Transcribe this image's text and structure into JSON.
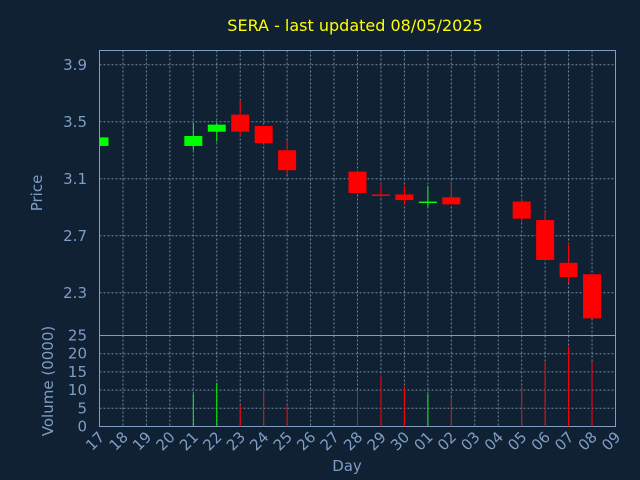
{
  "chart_data": {
    "type": "candlestick",
    "title": "SERA - last updated 08/05/2025",
    "xlabel": "Day",
    "ylabel": "Price",
    "volume_label": "Volume (0000)",
    "categories": [
      "17",
      "18",
      "19",
      "20",
      "21",
      "22",
      "23",
      "24",
      "25",
      "26",
      "27",
      "28",
      "29",
      "30",
      "01",
      "02",
      "03",
      "04",
      "05",
      "06",
      "07",
      "08",
      "09"
    ],
    "ylim": [
      2.0,
      4.0
    ],
    "yticks": [
      2.3,
      2.7,
      3.1,
      3.5,
      3.9
    ],
    "volume_ylim": [
      0,
      25
    ],
    "volume_yticks": [
      0,
      5,
      10,
      15,
      20,
      25
    ],
    "grid": true,
    "up_color": "#00ff00",
    "down_color": "#ff0000",
    "candles": [
      {
        "day": "17",
        "open": 3.33,
        "high": 3.39,
        "low": 3.33,
        "close": 3.39
      },
      {
        "day": "21",
        "open": 3.33,
        "high": 3.49,
        "low": 3.3,
        "close": 3.4
      },
      {
        "day": "22",
        "open": 3.43,
        "high": 3.49,
        "low": 3.36,
        "close": 3.48
      },
      {
        "day": "23",
        "open": 3.55,
        "high": 3.65,
        "low": 3.4,
        "close": 3.43
      },
      {
        "day": "24",
        "open": 3.47,
        "high": 3.47,
        "low": 3.35,
        "close": 3.35
      },
      {
        "day": "25",
        "open": 3.3,
        "high": 3.37,
        "low": 3.13,
        "close": 3.16
      },
      {
        "day": "28",
        "open": 3.15,
        "high": 3.16,
        "low": 3.0,
        "close": 3.0
      },
      {
        "day": "29",
        "open": 2.99,
        "high": 3.07,
        "low": 2.97,
        "close": 2.98
      },
      {
        "day": "30",
        "open": 2.99,
        "high": 3.05,
        "low": 2.92,
        "close": 2.95
      },
      {
        "day": "01",
        "open": 2.93,
        "high": 3.05,
        "low": 2.9,
        "close": 2.94
      },
      {
        "day": "02",
        "open": 2.97,
        "high": 3.08,
        "low": 2.92,
        "close": 2.92
      },
      {
        "day": "05",
        "open": 2.94,
        "high": 2.96,
        "low": 2.8,
        "close": 2.82
      },
      {
        "day": "06",
        "open": 2.81,
        "high": 2.87,
        "low": 2.53,
        "close": 2.53
      },
      {
        "day": "07",
        "open": 2.51,
        "high": 2.65,
        "low": 2.37,
        "close": 2.41
      },
      {
        "day": "08",
        "open": 2.43,
        "high": 2.43,
        "low": 2.12,
        "close": 2.12
      }
    ],
    "volume": [
      {
        "day": "21",
        "value": 9,
        "dir": "up"
      },
      {
        "day": "22",
        "value": 12,
        "dir": "up"
      },
      {
        "day": "23",
        "value": 6,
        "dir": "down"
      },
      {
        "day": "24",
        "value": 10,
        "dir": "down"
      },
      {
        "day": "25",
        "value": 6,
        "dir": "down"
      },
      {
        "day": "28",
        "value": 10,
        "dir": "down"
      },
      {
        "day": "29",
        "value": 14,
        "dir": "down"
      },
      {
        "day": "30",
        "value": 11,
        "dir": "down"
      },
      {
        "day": "01",
        "value": 9,
        "dir": "up"
      },
      {
        "day": "02",
        "value": 8,
        "dir": "down"
      },
      {
        "day": "05",
        "value": 11,
        "dir": "down"
      },
      {
        "day": "06",
        "value": 18,
        "dir": "down"
      },
      {
        "day": "07",
        "value": 22,
        "dir": "down"
      },
      {
        "day": "08",
        "value": 18,
        "dir": "down"
      }
    ]
  }
}
